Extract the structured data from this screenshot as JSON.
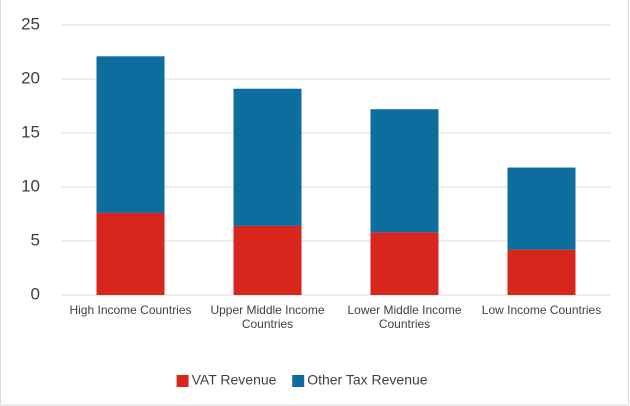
{
  "chart_data": {
    "type": "stacked_bar",
    "categories": [
      "High Income Countries",
      "Upper Middle Income Countries",
      "Lower Middle Income Countries",
      "Low Income Countries"
    ],
    "series": [
      {
        "name": "VAT Revenue",
        "color": "#d9261c",
        "values": [
          7.6,
          6.4,
          5.8,
          4.2
        ]
      },
      {
        "name": "Other Tax Revenue",
        "color": "#0d6d9f",
        "values": [
          14.5,
          12.7,
          11.4,
          7.6
        ]
      }
    ],
    "ylim": [
      0,
      25
    ],
    "yticks": [
      0,
      5,
      10,
      15,
      20,
      25
    ],
    "grid": true,
    "legend": "bottom"
  }
}
